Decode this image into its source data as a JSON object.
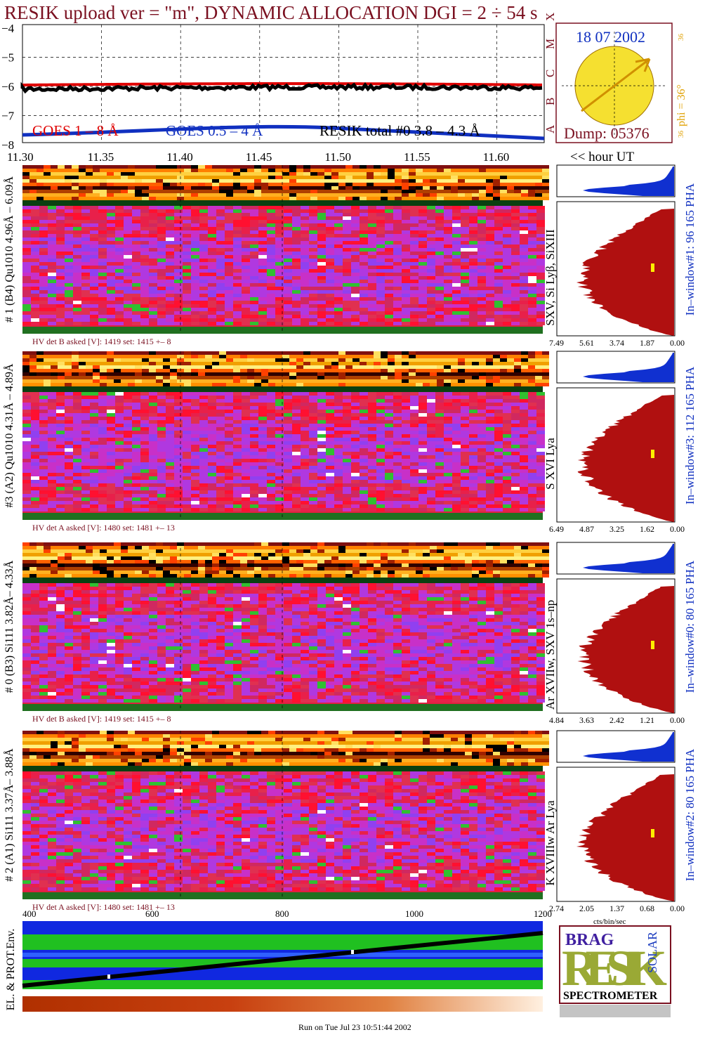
{
  "title": "RESIK upload ver = \"m\", DYNAMIC ALLOCATION  DGI =   2 ÷  54 s",
  "goes": {
    "yticks": [
      "−4",
      "−5",
      "−6",
      "−7",
      "−8"
    ],
    "legend": [
      "GOES 1 – 8 Å",
      "GOES 0.5 – 4 Å",
      "RESIK total #0  3.8 – 4.3 Å"
    ],
    "classes": [
      "X",
      "M",
      "C",
      "B",
      "A"
    ]
  },
  "sun": {
    "date": "18 07 2002",
    "phi": "phi = 36°",
    "phi_top": "36",
    "phi_bottom": "36",
    "dump": "Dump: 05376"
  },
  "time_axis": {
    "ticks": [
      "11.30",
      "11.35",
      "11.40",
      "11.45",
      "11.50",
      "11.55",
      "11.60"
    ],
    "unit": "<< hour UT"
  },
  "panels": [
    {
      "label": "# 1 (B4) Qu1010 4.96Å – 6.09Å",
      "lines": "SXV, Si Lyβ, SiXIII",
      "window": "In–window#1:   96 165  PHA",
      "hv": "HV det B asked [V]:  1419 set:  1415  +–    8",
      "pha_ticks": [
        "7.49",
        "5.61",
        "3.74",
        "1.87",
        "0.00"
      ]
    },
    {
      "label": "#3 (A2) Qu1010  4.31Å – 4.89Å",
      "lines": "S XVI Lya",
      "window": "In–window#3:  112 165  PHA",
      "hv": "HV det A asked [V]:  1480 set:  1481  +–   13",
      "pha_ticks": [
        "6.49",
        "4.87",
        "3.25",
        "1.62",
        "0.00"
      ]
    },
    {
      "label": "# 0 (B3) Si111  3.82Å– 4.33Å",
      "lines": "Ar XVIIw,  SXV 1s–np",
      "window": "In–window#0:   80 165  PHA",
      "hv": "HV det B asked [V]:  1419 set:  1415  +–    8",
      "pha_ticks": [
        "4.84",
        "3.63",
        "2.42",
        "1.21",
        "0.00"
      ]
    },
    {
      "label": "# 2 (A1) Si111  3.37Å– 3.88Å",
      "lines": "K XVIIIw  Ar Lya",
      "window": "In–window#2:   80 165  PHA",
      "hv": "HV det A asked [V]:  1480 set:  1481  +–   13",
      "pha_ticks": [
        "2.74",
        "2.05",
        "1.37",
        "0.68",
        "0.00"
      ]
    }
  ],
  "pha_unit": "cts/bin/sec",
  "env": {
    "label": "EL. & PROT.Env.",
    "xticks": [
      "400",
      "600",
      "800",
      "1000",
      "1200"
    ]
  },
  "logo": {
    "top": "BRAG",
    "main": "RESIK",
    "side": "SOLAR",
    "bottom": "SPECTROMETER"
  },
  "footer": "Run on Tue Jul 23 10:51:44 2002"
}
